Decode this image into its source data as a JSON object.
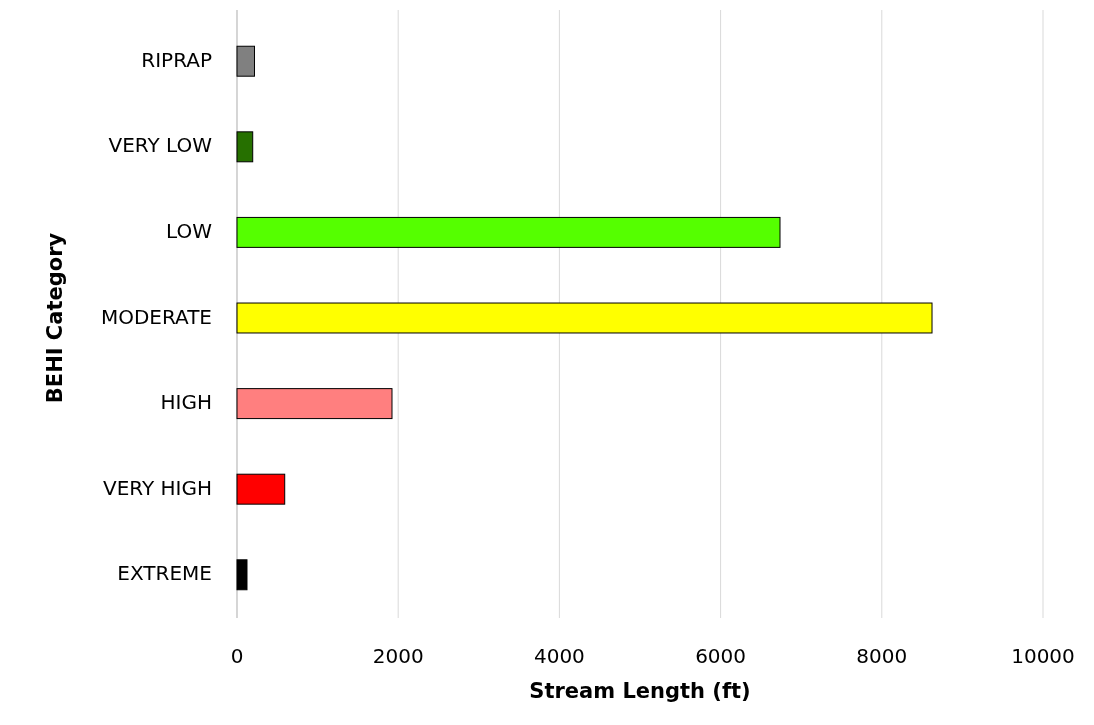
{
  "chart_data": {
    "type": "bar",
    "orientation": "horizontal",
    "xlabel": "Stream Length (ft)",
    "ylabel": "BEHI Category",
    "categories": [
      "RIPRAP",
      "VERY LOW",
      "LOW",
      "MODERATE",
      "HIGH",
      "VERY HIGH",
      "EXTREME"
    ],
    "values": [
      217,
      195,
      6737,
      8623,
      1923,
      592,
      124
    ],
    "colors": [
      "#808080",
      "#267000",
      "#55ff00",
      "#ffff00",
      "#ff7f7f",
      "#ff0000",
      "#000000"
    ],
    "xlim": [
      0,
      10000
    ],
    "xticks": [
      0,
      2000,
      4000,
      6000,
      8000,
      10000
    ],
    "grid": "x"
  }
}
